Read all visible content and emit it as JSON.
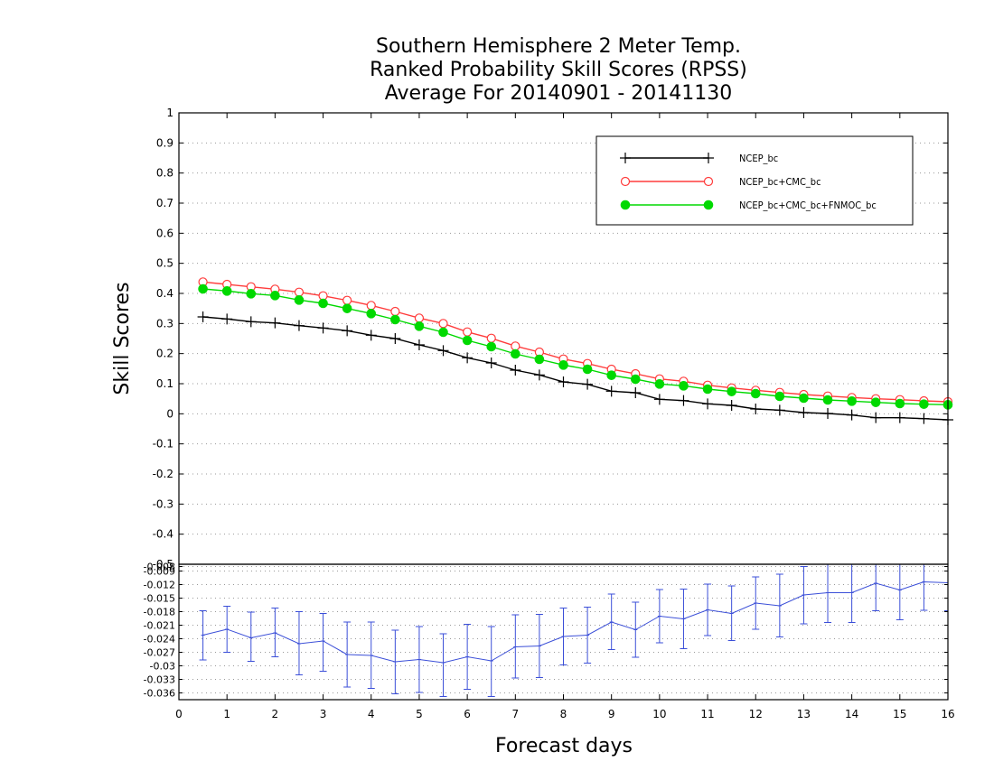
{
  "chart_data": {
    "type": "line",
    "title_lines": [
      "Southern Hemisphere 2 Meter Temp.",
      "Ranked Probability Skill Scores (RPSS)",
      "Average For 20140901 - 20141130"
    ],
    "xlabel": "Forecast days",
    "ylabel": "Skill Scores",
    "xlim": [
      0,
      16
    ],
    "xticks": [
      "0",
      "1",
      "2",
      "3",
      "4",
      "5",
      "6",
      "7",
      "8",
      "9",
      "10",
      "11",
      "12",
      "13",
      "14",
      "15",
      "16"
    ],
    "top_panel": {
      "ylim": [
        -0.5,
        1
      ],
      "yticks": [
        "-0.5",
        "-0.4",
        "-0.3",
        "-0.2",
        "-0.1",
        "0",
        "0.1",
        "0.2",
        "0.3",
        "0.4",
        "0.5",
        "0.6",
        "0.7",
        "0.8",
        "0.9",
        "1"
      ],
      "grid": true,
      "legend_position": "top-right",
      "x": [
        0.5,
        1,
        1.5,
        2,
        2.5,
        3,
        3.5,
        4,
        4.5,
        5,
        5.5,
        6,
        6.5,
        7,
        7.5,
        8,
        8.5,
        9,
        9.5,
        10,
        10.5,
        11,
        11.5,
        12,
        12.5,
        13,
        13.5,
        14,
        14.5,
        15,
        15.5,
        16
      ],
      "series": [
        {
          "name": "NCEP_bc",
          "color": "#000000",
          "marker": "plus",
          "values": [
            0.322,
            0.315,
            0.306,
            0.302,
            0.293,
            0.285,
            0.276,
            0.261,
            0.25,
            0.229,
            0.21,
            0.186,
            0.169,
            0.145,
            0.129,
            0.106,
            0.098,
            0.075,
            0.07,
            0.048,
            0.044,
            0.033,
            0.028,
            0.016,
            0.012,
            0.004,
            0.001,
            -0.004,
            -0.013,
            -0.013,
            -0.016,
            -0.02
          ]
        },
        {
          "name": "NCEP_bc+CMC_bc",
          "color": "#ff3b3b",
          "marker": "open-circle",
          "values": [
            0.438,
            0.43,
            0.422,
            0.414,
            0.404,
            0.392,
            0.377,
            0.36,
            0.34,
            0.318,
            0.3,
            0.272,
            0.251,
            0.225,
            0.205,
            0.182,
            0.167,
            0.148,
            0.133,
            0.116,
            0.108,
            0.095,
            0.086,
            0.078,
            0.071,
            0.064,
            0.059,
            0.054,
            0.05,
            0.047,
            0.043,
            0.04
          ]
        },
        {
          "name": "NCEP_bc+CMC_bc+FNMOC_bc",
          "color": "#00d900",
          "marker": "filled-circle",
          "values": [
            0.415,
            0.408,
            0.399,
            0.393,
            0.378,
            0.367,
            0.35,
            0.333,
            0.313,
            0.291,
            0.271,
            0.244,
            0.223,
            0.199,
            0.181,
            0.162,
            0.148,
            0.128,
            0.115,
            0.099,
            0.093,
            0.082,
            0.074,
            0.067,
            0.058,
            0.052,
            0.046,
            0.042,
            0.038,
            0.034,
            0.032,
            0.03
          ]
        }
      ]
    },
    "bottom_panel": {
      "ylim": [
        -0.0375,
        -0.0075
      ],
      "yticks": [
        "-0.008",
        "-0.009",
        "-0.012",
        "-0.015",
        "-0.018",
        "-0.021",
        "-0.024",
        "-0.027",
        "-0.03",
        "-0.033",
        "-0.036"
      ],
      "grid": true,
      "series_color": "#3b4fd8",
      "x": [
        0.5,
        1,
        1.5,
        2,
        2.5,
        3,
        3.5,
        4,
        4.5,
        5,
        5.5,
        6,
        6.5,
        7,
        7.5,
        8,
        8.5,
        9,
        9.5,
        10,
        10.5,
        11,
        11.5,
        12,
        12.5,
        13,
        13.5,
        14,
        14.5,
        15,
        15.5,
        16
      ],
      "values": [
        -0.0232,
        -0.0219,
        -0.0238,
        -0.0227,
        -0.0251,
        -0.0245,
        -0.0275,
        -0.0277,
        -0.0291,
        -0.0286,
        -0.0293,
        -0.028,
        -0.0289,
        -0.0258,
        -0.0256,
        -0.0235,
        -0.0232,
        -0.0203,
        -0.022,
        -0.019,
        -0.0196,
        -0.0176,
        -0.0184,
        -0.0161,
        -0.0167,
        -0.0143,
        -0.0138,
        -0.0138,
        -0.0117,
        -0.0132,
        -0.0114,
        -0.0116
      ],
      "err_low": [
        -0.0287,
        -0.027,
        -0.029,
        -0.028,
        -0.032,
        -0.0312,
        -0.0347,
        -0.035,
        -0.0362,
        -0.0359,
        -0.0368,
        -0.0352,
        -0.0368,
        -0.0327,
        -0.0326,
        -0.0298,
        -0.0294,
        -0.0264,
        -0.0281,
        -0.0249,
        -0.0262,
        -0.0233,
        -0.0244,
        -0.0219,
        -0.0236,
        -0.0207,
        -0.0204,
        -0.0204,
        -0.0178,
        -0.0198,
        -0.0177,
        -0.0178
      ],
      "err_high": [
        -0.0178,
        -0.0168,
        -0.0181,
        -0.0172,
        -0.018,
        -0.0184,
        -0.0203,
        -0.0203,
        -0.0221,
        -0.0213,
        -0.0229,
        -0.0208,
        -0.0213,
        -0.0187,
        -0.0186,
        -0.0172,
        -0.017,
        -0.0141,
        -0.0159,
        -0.0131,
        -0.013,
        -0.0119,
        -0.0123,
        -0.0103,
        -0.0097,
        -0.008,
        -0.0072,
        -0.0072,
        -0.0055,
        -0.0066,
        -0.0051,
        -0.0055
      ]
    }
  }
}
